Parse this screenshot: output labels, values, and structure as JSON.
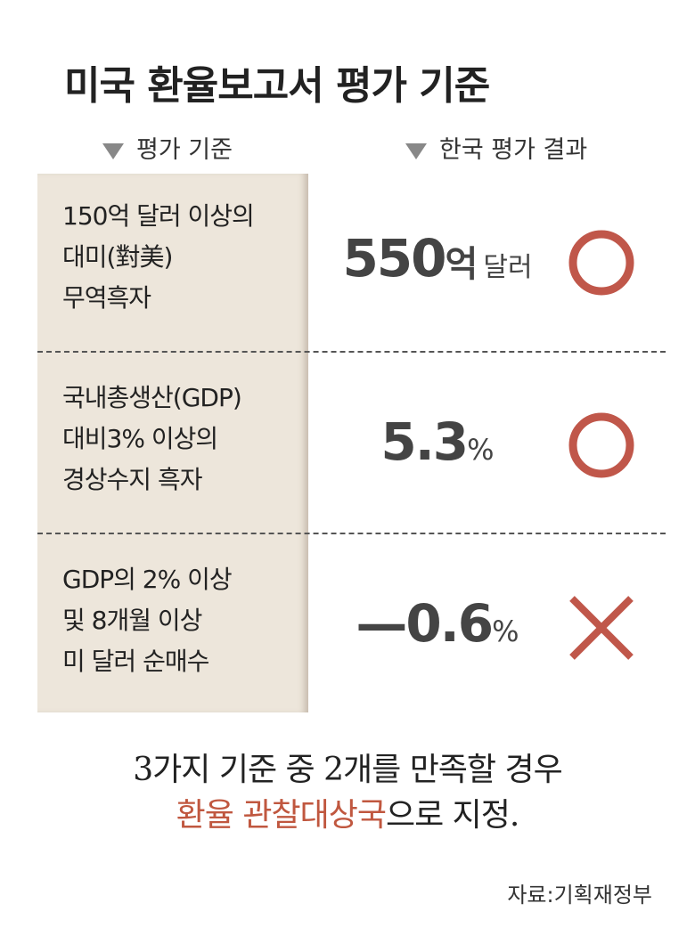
{
  "title": "미국 환율보고서 평가 기준",
  "headers": [
    "평가 기준",
    "한국 평가 결과"
  ],
  "rows": [
    {
      "criterion": [
        "150억 달러 이상의",
        "대미(對美)",
        "무역흑자"
      ],
      "number": "550",
      "suffix": "억",
      "unit": "달러"
    },
    {
      "criterion": [
        "국내총생산(GDP)",
        "대비3% 이상의",
        "경상수지 흑자"
      ],
      "number": "5.3",
      "unit": "%"
    },
    {
      "criterion": [
        "GDP의 2% 이상",
        "및 8개월 이상",
        "미 달러 순매수"
      ],
      "number": "—0.6",
      "unit": "%"
    }
  ],
  "footer": {
    "line1": "3가지 기준 중 2개를 만족할 경우",
    "highlight": "환율 관찰대상국",
    "rest": "으로 지정."
  },
  "source": "자료:기획재정부"
}
